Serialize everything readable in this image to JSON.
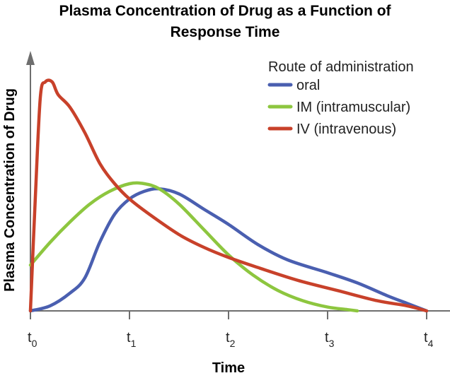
{
  "chart_data": {
    "type": "line",
    "title_line1": "Plasma Concentration of Drug as a Function of",
    "title_line2": "Response Time",
    "xlabel": "Time",
    "ylabel": "Plasma Concentration of Drug",
    "x_ticks": [
      {
        "base": "t",
        "sub": "0",
        "value": 0
      },
      {
        "base": "t",
        "sub": "1",
        "value": 1
      },
      {
        "base": "t",
        "sub": "2",
        "value": 2
      },
      {
        "base": "t",
        "sub": "3",
        "value": 3
      },
      {
        "base": "t",
        "sub": "4",
        "value": 4
      }
    ],
    "xlim": [
      0,
      4
    ],
    "ylim": [
      0,
      1
    ],
    "legend_title": "Route of administration",
    "legend_position": "top-right",
    "grid": false,
    "series": [
      {
        "name": "oral",
        "color": "#4a5fb0",
        "points": [
          [
            0,
            0
          ],
          [
            0.2,
            0.02
          ],
          [
            0.4,
            0.07
          ],
          [
            0.55,
            0.13
          ],
          [
            0.7,
            0.27
          ],
          [
            0.85,
            0.38
          ],
          [
            1.0,
            0.44
          ],
          [
            1.15,
            0.47
          ],
          [
            1.3,
            0.48
          ],
          [
            1.5,
            0.46
          ],
          [
            1.75,
            0.4
          ],
          [
            2.0,
            0.34
          ],
          [
            2.3,
            0.26
          ],
          [
            2.6,
            0.2
          ],
          [
            3.0,
            0.15
          ],
          [
            3.3,
            0.11
          ],
          [
            3.6,
            0.06
          ],
          [
            3.8,
            0.03
          ],
          [
            4.0,
            0.0
          ]
        ]
      },
      {
        "name": "IM (intramuscular)",
        "color": "#8dc63f",
        "points": [
          [
            0,
            0.18
          ],
          [
            0.2,
            0.27
          ],
          [
            0.4,
            0.35
          ],
          [
            0.6,
            0.42
          ],
          [
            0.8,
            0.47
          ],
          [
            1.0,
            0.5
          ],
          [
            1.15,
            0.5
          ],
          [
            1.3,
            0.48
          ],
          [
            1.5,
            0.42
          ],
          [
            1.75,
            0.32
          ],
          [
            2.0,
            0.22
          ],
          [
            2.25,
            0.14
          ],
          [
            2.5,
            0.08
          ],
          [
            2.75,
            0.04
          ],
          [
            3.0,
            0.015
          ],
          [
            3.2,
            0.005
          ],
          [
            3.3,
            0.0
          ]
        ]
      },
      {
        "name": "IV (intravenous)",
        "color": "#c8412a",
        "points": [
          [
            0,
            0.0
          ],
          [
            0.05,
            0.45
          ],
          [
            0.1,
            0.84
          ],
          [
            0.15,
            0.9
          ],
          [
            0.22,
            0.9
          ],
          [
            0.28,
            0.85
          ],
          [
            0.4,
            0.8
          ],
          [
            0.55,
            0.7
          ],
          [
            0.7,
            0.58
          ],
          [
            0.85,
            0.5
          ],
          [
            1.0,
            0.44
          ],
          [
            1.2,
            0.38
          ],
          [
            1.5,
            0.3
          ],
          [
            1.75,
            0.25
          ],
          [
            2.0,
            0.21
          ],
          [
            2.3,
            0.17
          ],
          [
            2.7,
            0.12
          ],
          [
            3.1,
            0.08
          ],
          [
            3.5,
            0.04
          ],
          [
            3.8,
            0.02
          ],
          [
            4.0,
            0.0
          ]
        ]
      }
    ]
  }
}
